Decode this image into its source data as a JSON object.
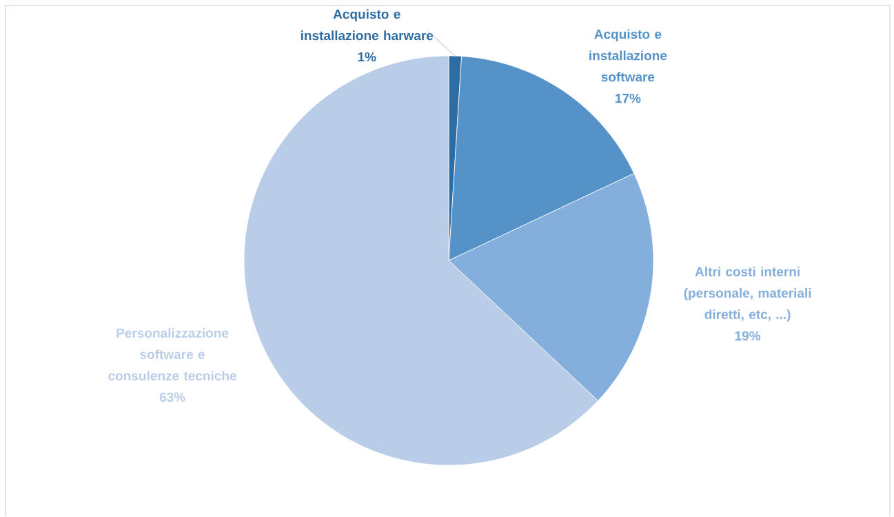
{
  "chart_data": {
    "type": "pie",
    "categories": [
      "Acquisto e installazione harware",
      "Acquisto e installazione software",
      "Altri costi interni (personale, materiali diretti, etc, ...)",
      "Personalizzazione software e consulenze tecniche"
    ],
    "values": [
      1,
      17,
      19,
      63
    ],
    "value_labels": [
      "1%",
      "17%",
      "19%",
      "63%"
    ],
    "colors": [
      "#2e6ca4",
      "#5592c8",
      "#84afdd",
      "#b9cde8"
    ]
  }
}
